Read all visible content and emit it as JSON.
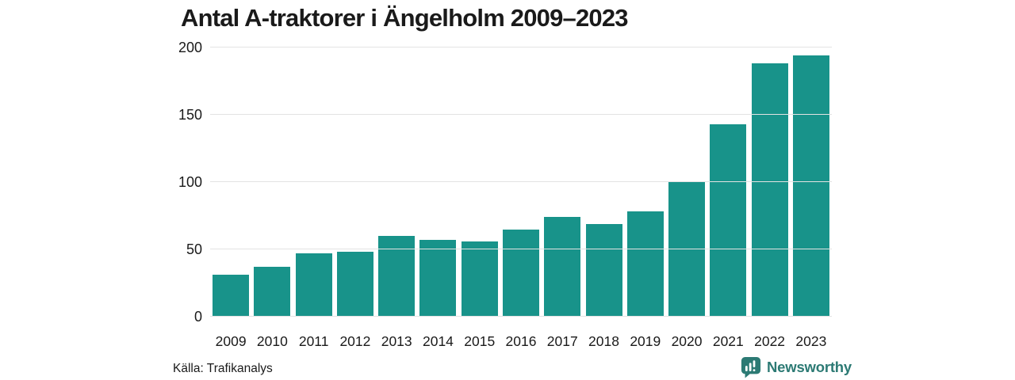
{
  "header": {
    "title": "Antal A-traktorer i Ängelholm 2009–2023"
  },
  "footer": {
    "source": "Källa: Trafikanalys",
    "brand": {
      "name": "Newsworthy",
      "icon": "newsworthy-logo-icon"
    }
  },
  "colors": {
    "bar": "#18938a",
    "grid": "#e3e3e3",
    "text": "#1a1a1a",
    "brand": "#2c7a74",
    "background": "#ffffff"
  },
  "chart_data": {
    "type": "bar",
    "title": "Antal A-traktorer i Ängelholm 2009–2023",
    "categories": [
      "2009",
      "2010",
      "2011",
      "2012",
      "2013",
      "2014",
      "2015",
      "2016",
      "2017",
      "2018",
      "2019",
      "2020",
      "2021",
      "2022",
      "2023"
    ],
    "values": [
      31,
      37,
      47,
      48,
      60,
      57,
      56,
      65,
      74,
      69,
      78,
      100,
      143,
      188,
      194
    ],
    "xlabel": "",
    "ylabel": "",
    "ylim": [
      0,
      200
    ],
    "yticks": [
      0,
      50,
      100,
      150,
      200
    ],
    "grid": true,
    "legend": false,
    "bar_color": "#18938a",
    "source": "Källa: Trafikanalys"
  }
}
